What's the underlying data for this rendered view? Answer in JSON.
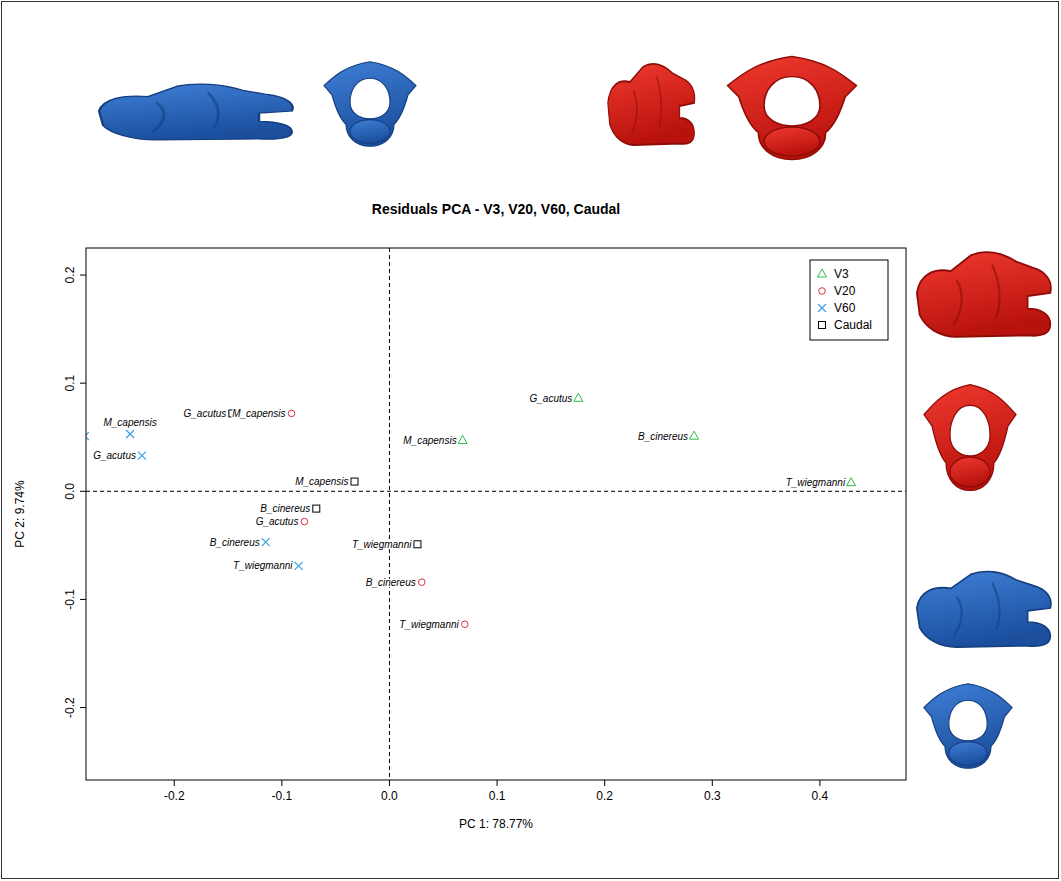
{
  "chart_data": {
    "type": "scatter",
    "title": "Residuals PCA - V3, V20, V60, Caudal",
    "x_label": "PC 1: 78.77%",
    "y_label": "PC 2: 9.74%",
    "xlim": [
      -0.282,
      0.48
    ],
    "ylim": [
      -0.267,
      0.225
    ],
    "xticks": [
      -0.2,
      -0.1,
      {
        "value": 0,
        "label": "0.0"
      },
      0.1,
      0.2,
      0.3,
      0.4
    ],
    "yticks": [
      -0.2,
      -0.1,
      {
        "value": 0,
        "label": "0.0"
      },
      0.1,
      0.2
    ],
    "vlines": [
      0
    ],
    "hlines": [
      0
    ],
    "legend": "topright",
    "series": [
      {
        "name": "V3",
        "color": "#2fb84a",
        "marker": "triangle",
        "x": [
          0.1755,
          0.068,
          0.283,
          0.429
        ],
        "values": [
          0.086,
          0.047,
          0.051,
          0.008
        ],
        "labels": [
          "G_acutus",
          "M_capensis",
          "B_cinereus",
          "T_wiegmanni"
        ]
      },
      {
        "name": "V20",
        "color": "#e0303a",
        "marker": "circle",
        "x": [
          -0.091,
          -0.079,
          0.03,
          0.07
        ],
        "values": [
          0.072,
          -0.028,
          -0.084,
          -0.123
        ],
        "labels": [
          "M_capensis",
          "G_acutus",
          "B_cinereus",
          "T_wiegmanni"
        ]
      },
      {
        "name": "V60",
        "color": "#3b9fe0",
        "marker": "x",
        "x": [
          -0.241,
          -0.23,
          -0.115,
          -0.0845,
          -0.283
        ],
        "values": [
          0.053,
          0.033,
          -0.047,
          -0.069,
          0.051
        ],
        "labels": [
          "M_capensis",
          "G_acutus",
          "B_cinereus",
          "T_wiegmanni",
          null
        ]
      },
      {
        "name": "Caudal",
        "color": "#000000",
        "marker": "square",
        "x": [
          -0.146,
          -0.0325,
          -0.068,
          0.026
        ],
        "values": [
          0.072,
          0.009,
          -0.016,
          -0.049
        ],
        "labels": [
          "G_acutus",
          "M_capensis",
          "B_cinereus",
          "T_wiegmanni"
        ]
      }
    ]
  }
}
